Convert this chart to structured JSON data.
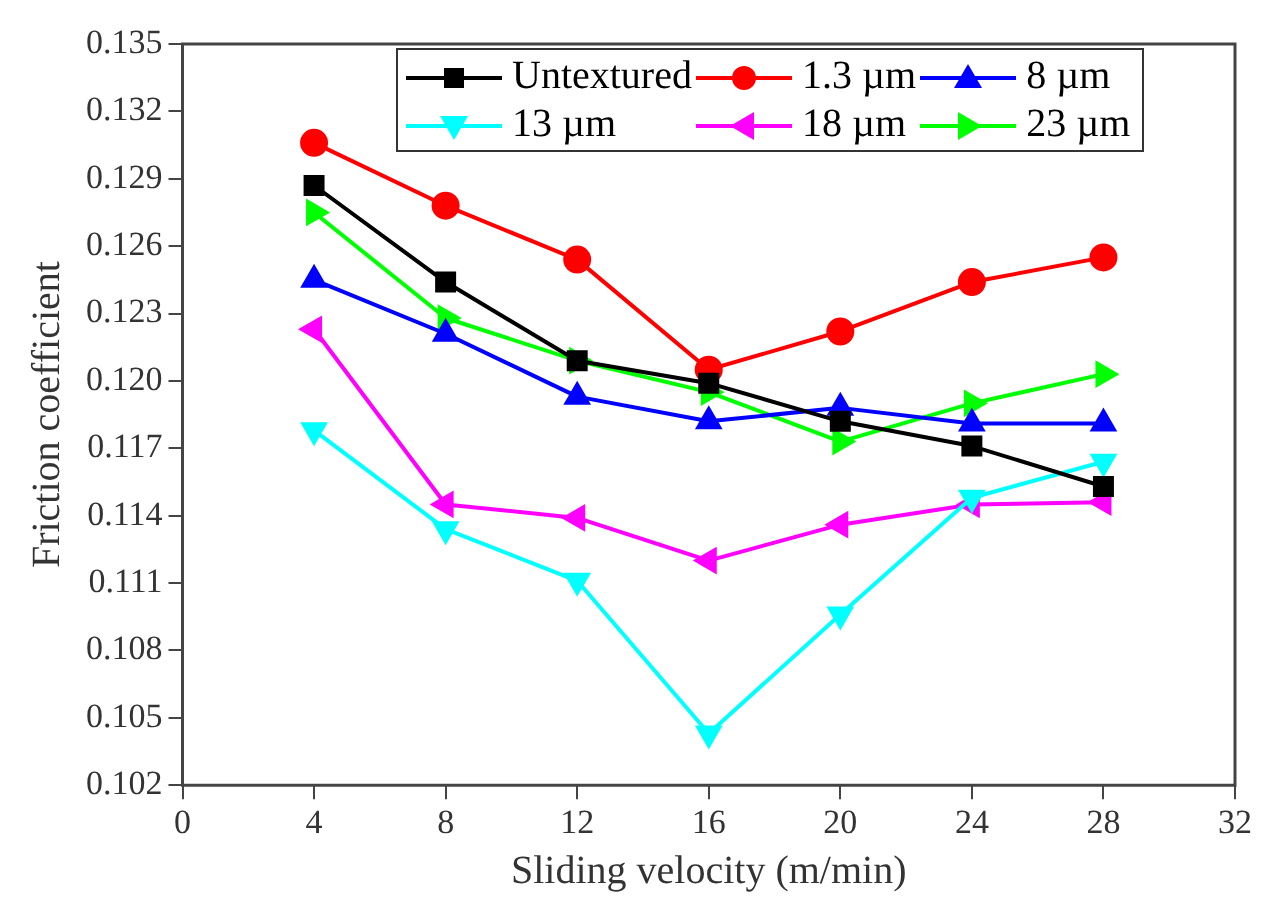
{
  "chart_data": {
    "type": "line",
    "xlabel": "Sliding velocity (m/min)",
    "ylabel": "Friction coefficient",
    "x": [
      4,
      8,
      12,
      16,
      20,
      24,
      28
    ],
    "xlim": [
      0,
      32
    ],
    "xticks": [
      0,
      4,
      8,
      12,
      16,
      20,
      24,
      28,
      32
    ],
    "ylim": [
      0.102,
      0.135
    ],
    "yticks": [
      0.102,
      0.105,
      0.108,
      0.111,
      0.114,
      0.117,
      {
        "value": 0.12,
        "label": "0.120"
      },
      0.123,
      0.126,
      0.129,
      0.132,
      0.135
    ],
    "grid": false,
    "legend": "top",
    "line_style": "solid",
    "series": [
      {
        "name": "Untextured",
        "color": "#000000",
        "marker": "square",
        "values": [
          0.1287,
          0.1244,
          0.1209,
          0.1199,
          0.1182,
          0.1171,
          0.1153
        ]
      },
      {
        "name": "1.3 µm",
        "color": "#ff0000",
        "marker": "circle",
        "values": [
          0.1306,
          0.1278,
          0.1254,
          0.1205,
          0.1222,
          0.1244,
          0.1255
        ]
      },
      {
        "name": "8 µm",
        "color": "#0000ff",
        "marker": "triangle",
        "values": [
          0.1245,
          0.1221,
          0.1193,
          0.1182,
          0.1188,
          0.1181,
          0.1181
        ]
      },
      {
        "name": "13 µm",
        "color": "#00ffff",
        "marker": "triangle-down",
        "values": [
          0.1178,
          0.1134,
          0.1111,
          0.1043,
          0.1096,
          0.1148,
          0.1164
        ]
      },
      {
        "name": "18 µm",
        "color": "#ff00ff",
        "marker": "triangle-left",
        "values": [
          0.1223,
          0.1145,
          0.1139,
          0.112,
          0.1136,
          0.1145,
          0.1146
        ]
      },
      {
        "name": "23 µm",
        "color": "#00ff00",
        "marker": "triangle-right",
        "values": [
          0.1275,
          0.1228,
          0.1209,
          0.1195,
          0.1173,
          0.119,
          0.1203
        ]
      }
    ]
  }
}
